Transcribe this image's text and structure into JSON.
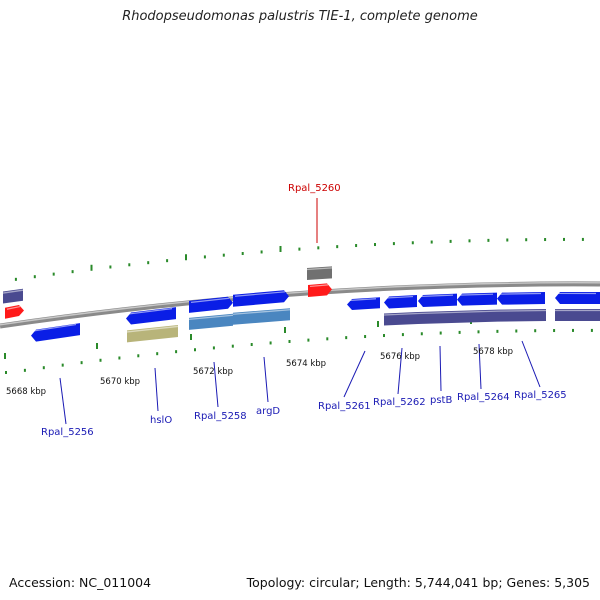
{
  "title": "Rhodopseudomonas palustris TIE-1, complete genome",
  "footer": {
    "accession": "Accession: NC_011004",
    "topology": "Topology: circular; Length: 5,744,041 bp; Genes: 5,305"
  },
  "colors": {
    "backbone": "#8c8c8c",
    "tick": "#2a8a2a",
    "gene_blue": "#0a1ee6",
    "gene_red": "#ff1a1a",
    "label_blue": "#1a1ab4",
    "label_red": "#cc0000",
    "rna_purple": "#4a4a90",
    "rna_teal": "#4a86c0",
    "rna_olive": "#b8b47a",
    "rna_gray": "#707070"
  },
  "scale_labels": [
    "5668 kbp",
    "5670 kbp",
    "5672 kbp",
    "5674 kbp",
    "5676 kbp",
    "5678 kbp"
  ],
  "gene_labels": [
    {
      "name": "Rpal_5256",
      "strand": "minus"
    },
    {
      "name": "hslO",
      "strand": "minus"
    },
    {
      "name": "Rpal_5258",
      "strand": "plus"
    },
    {
      "name": "argD",
      "strand": "plus"
    },
    {
      "name": "Rpal_5260",
      "strand": "minus"
    },
    {
      "name": "Rpal_5261",
      "strand": "plus"
    },
    {
      "name": "Rpal_5262",
      "strand": "plus"
    },
    {
      "name": "pstB",
      "strand": "plus"
    },
    {
      "name": "Rpal_5264",
      "strand": "plus"
    },
    {
      "name": "Rpal_5265",
      "strand": "plus"
    }
  ]
}
